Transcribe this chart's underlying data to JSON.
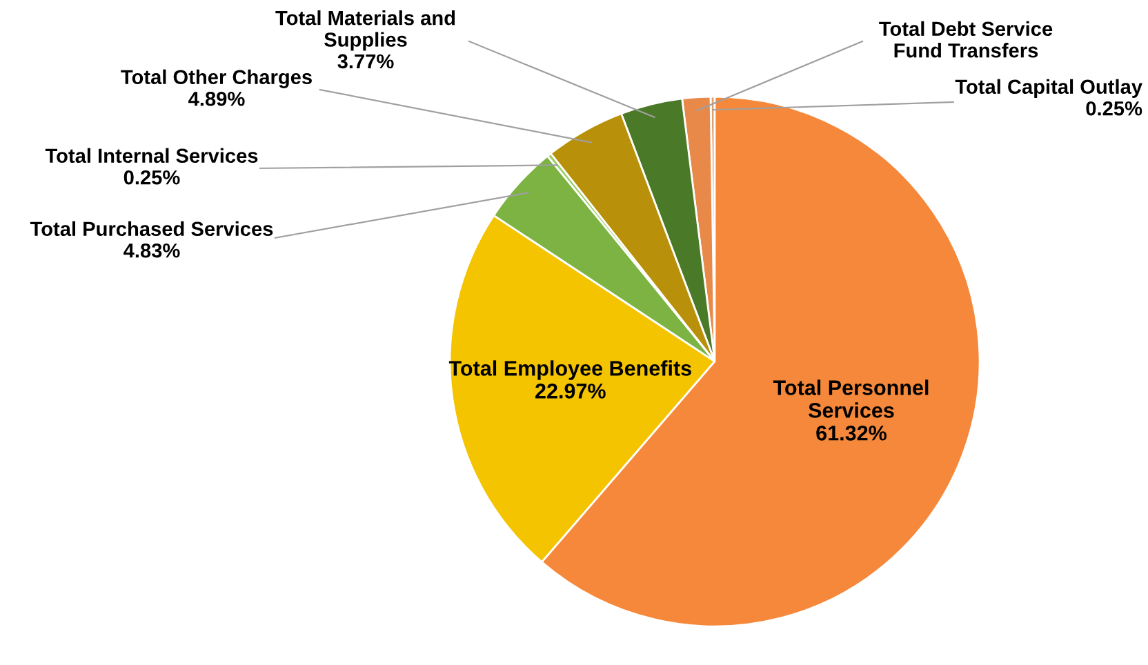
{
  "chart_data": {
    "type": "pie",
    "categories": [
      "Total Capital Outlay",
      "Total Debt Service\nFund Transfers",
      "Total Materials and\nSupplies",
      "Total Other Charges",
      "Total Internal Services",
      "Total Purchased Services",
      "Total Employee Benefits",
      "Total Personnel\nServices"
    ],
    "values": [
      0.25,
      1.72,
      3.77,
      4.89,
      0.25,
      4.83,
      22.97,
      61.32
    ],
    "value_labels": [
      "0.25%",
      null,
      "3.77%",
      "4.89%",
      "0.25%",
      "4.83%",
      "22.97%",
      "61.32%"
    ],
    "colors": [
      "#d9a070",
      "#e8894a",
      "#4a7a28",
      "#b8900a",
      "#9ccc65",
      "#7cb342",
      "#f5c400",
      "#f5883a"
    ]
  }
}
